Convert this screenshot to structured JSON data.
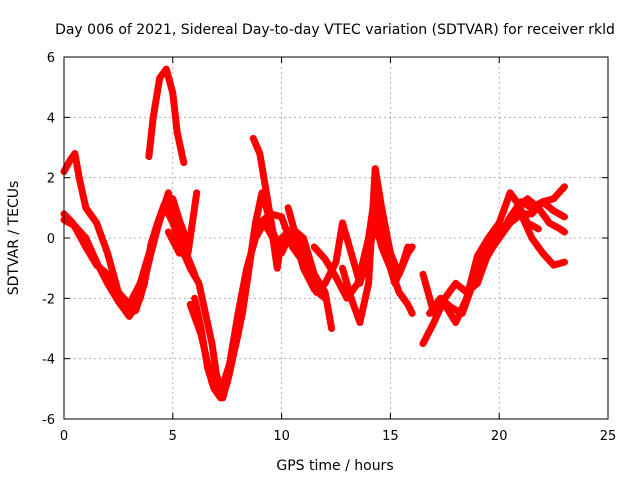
{
  "chart_data": {
    "type": "scatter",
    "title": "Day 006 of 2021, Sidereal Day-to-day VTEC variation (SDTVAR) for receiver rkld",
    "xlabel": "GPS time / hours",
    "ylabel": "SDTVAR / TECUs",
    "xlim": [
      0,
      25
    ],
    "ylim": [
      -6,
      6
    ],
    "xticks": [
      "0",
      "5",
      "10",
      "15",
      "20",
      "25"
    ],
    "yticks": [
      "-6",
      "-4",
      "-2",
      "0",
      "2",
      "4",
      "6"
    ],
    "grid": true,
    "marker": "+",
    "color": "#ff0000",
    "tracks": [
      {
        "points": [
          [
            0.0,
            2.2
          ],
          [
            0.3,
            2.6
          ],
          [
            0.5,
            2.8
          ],
          [
            0.7,
            2.0
          ],
          [
            1.0,
            1.0
          ],
          [
            1.5,
            0.5
          ],
          [
            2.0,
            -0.5
          ],
          [
            2.5,
            -1.8
          ],
          [
            3.0,
            -2.5
          ],
          [
            3.3,
            -2.4
          ],
          [
            3.7,
            -1.5
          ],
          [
            4.0,
            -0.2
          ],
          [
            4.3,
            0.5
          ],
          [
            4.6,
            1.1
          ],
          [
            5.0,
            0.5
          ],
          [
            5.5,
            -0.5
          ]
        ]
      },
      {
        "points": [
          [
            0.0,
            0.6
          ],
          [
            0.5,
            0.4
          ],
          [
            1.0,
            0.0
          ],
          [
            1.5,
            -0.8
          ],
          [
            2.0,
            -1.5
          ],
          [
            2.5,
            -2.1
          ],
          [
            3.0,
            -2.6
          ],
          [
            3.5,
            -2.0
          ],
          [
            4.0,
            -0.5
          ],
          [
            4.4,
            0.6
          ],
          [
            4.8,
            1.5
          ],
          [
            5.0,
            0.8
          ],
          [
            5.5,
            -0.3
          ],
          [
            6.0,
            -1.2
          ]
        ]
      },
      {
        "points": [
          [
            0.0,
            0.8
          ],
          [
            0.4,
            0.5
          ],
          [
            1.0,
            -0.3
          ],
          [
            1.5,
            -0.9
          ],
          [
            2.0,
            -1.2
          ],
          [
            2.5,
            -1.8
          ],
          [
            3.0,
            -2.2
          ],
          [
            3.5,
            -1.5
          ],
          [
            4.0,
            -0.3
          ],
          [
            4.5,
            0.8
          ],
          [
            5.0,
            1.3
          ],
          [
            5.3,
            0.6
          ],
          [
            5.7,
            -0.2
          ]
        ]
      },
      {
        "points": [
          [
            3.9,
            2.7
          ],
          [
            4.1,
            4.0
          ],
          [
            4.4,
            5.3
          ],
          [
            4.7,
            5.6
          ],
          [
            5.0,
            4.8
          ],
          [
            5.2,
            3.5
          ],
          [
            5.5,
            2.5
          ]
        ]
      },
      {
        "points": [
          [
            4.8,
            0.2
          ],
          [
            5.3,
            -0.5
          ],
          [
            5.7,
            -0.5
          ],
          [
            6.1,
            1.5
          ]
        ]
      },
      {
        "points": [
          [
            5.5,
            -0.5
          ],
          [
            5.8,
            -1.0
          ],
          [
            6.2,
            -1.5
          ],
          [
            6.5,
            -2.5
          ],
          [
            6.8,
            -3.5
          ],
          [
            7.0,
            -4.5
          ],
          [
            7.3,
            -5.3
          ],
          [
            7.6,
            -4.5
          ],
          [
            7.9,
            -3.5
          ],
          [
            8.2,
            -2.5
          ],
          [
            8.5,
            -1.0
          ],
          [
            8.8,
            0.5
          ],
          [
            9.1,
            1.5
          ],
          [
            9.5,
            0.5
          ],
          [
            9.8,
            -1.0
          ],
          [
            10.0,
            0.0
          ],
          [
            10.5,
            0.3
          ],
          [
            11.0,
            -1.0
          ],
          [
            11.5,
            -1.7
          ],
          [
            12.0,
            -2.0
          ]
        ]
      },
      {
        "points": [
          [
            6.0,
            -2.0
          ],
          [
            6.3,
            -3.0
          ],
          [
            6.6,
            -4.3
          ],
          [
            6.9,
            -5.0
          ],
          [
            7.2,
            -5.3
          ],
          [
            7.5,
            -4.8
          ],
          [
            7.8,
            -3.8
          ],
          [
            8.0,
            -3.2
          ],
          [
            8.3,
            -2.0
          ],
          [
            8.6,
            -0.5
          ],
          [
            9.0,
            0.5
          ],
          [
            9.5,
            0.8
          ],
          [
            10.0,
            0.7
          ],
          [
            10.5,
            -0.3
          ],
          [
            11.0,
            -0.8
          ],
          [
            11.5,
            -1.5
          ]
        ]
      },
      {
        "points": [
          [
            5.8,
            -2.2
          ],
          [
            6.3,
            -3.2
          ],
          [
            6.8,
            -4.8
          ],
          [
            7.2,
            -5.1
          ],
          [
            7.6,
            -4.2
          ],
          [
            8.0,
            -2.5
          ],
          [
            8.4,
            -1.0
          ],
          [
            8.8,
            0.0
          ],
          [
            9.2,
            0.5
          ],
          [
            9.6,
            0.0
          ]
        ]
      },
      {
        "points": [
          [
            8.7,
            3.3
          ],
          [
            9.0,
            2.8
          ],
          [
            9.3,
            1.5
          ],
          [
            9.6,
            0.2
          ],
          [
            10.0,
            -0.5
          ],
          [
            10.5,
            0.3
          ],
          [
            11.0,
            0.0
          ],
          [
            11.5,
            -1.2
          ],
          [
            12.0,
            -1.8
          ],
          [
            12.3,
            -3.0
          ]
        ]
      },
      {
        "points": [
          [
            10.3,
            1.0
          ],
          [
            10.8,
            -0.3
          ],
          [
            11.2,
            -1.0
          ],
          [
            11.6,
            -1.8
          ],
          [
            12.0,
            -1.5
          ],
          [
            12.5,
            -0.8
          ],
          [
            12.8,
            0.5
          ],
          [
            13.2,
            -0.5
          ],
          [
            13.6,
            -1.5
          ],
          [
            14.0,
            -0.5
          ],
          [
            14.3,
            0.5
          ],
          [
            14.6,
            -0.3
          ],
          [
            15.0,
            -1.0
          ],
          [
            15.4,
            -1.8
          ],
          [
            15.8,
            -2.2
          ],
          [
            16.0,
            -2.5
          ]
        ]
      },
      {
        "points": [
          [
            11.5,
            -0.3
          ],
          [
            12.0,
            -0.7
          ],
          [
            12.5,
            -1.3
          ],
          [
            13.0,
            -2.0
          ],
          [
            13.5,
            -1.5
          ],
          [
            14.0,
            0.0
          ],
          [
            14.3,
            1.5
          ],
          [
            14.5,
            0.5
          ],
          [
            14.8,
            -0.5
          ],
          [
            15.2,
            -1.5
          ],
          [
            15.5,
            -1.0
          ],
          [
            15.8,
            -0.3
          ]
        ]
      },
      {
        "points": [
          [
            12.8,
            -1.0
          ],
          [
            13.2,
            -2.0
          ],
          [
            13.6,
            -2.8
          ],
          [
            14.0,
            -1.5
          ],
          [
            14.3,
            2.3
          ],
          [
            14.6,
            1.0
          ],
          [
            15.0,
            -0.5
          ],
          [
            15.4,
            -1.2
          ],
          [
            15.8,
            -0.5
          ],
          [
            16.0,
            -0.3
          ]
        ]
      },
      {
        "points": [
          [
            16.5,
            -1.2
          ],
          [
            17.0,
            -2.5
          ],
          [
            17.5,
            -2.2
          ],
          [
            18.0,
            -2.8
          ],
          [
            18.5,
            -2.0
          ],
          [
            19.0,
            -1.0
          ],
          [
            19.5,
            -0.2
          ],
          [
            20.0,
            0.3
          ],
          [
            20.5,
            0.5
          ],
          [
            21.0,
            0.8
          ],
          [
            21.5,
            0.8
          ],
          [
            22.0,
            1.2
          ],
          [
            22.5,
            1.3
          ],
          [
            23.0,
            1.7
          ]
        ]
      },
      {
        "points": [
          [
            16.5,
            -3.5
          ],
          [
            17.0,
            -2.8
          ],
          [
            17.5,
            -2.0
          ],
          [
            18.0,
            -1.5
          ],
          [
            18.5,
            -1.8
          ],
          [
            19.0,
            -1.5
          ],
          [
            19.5,
            -0.5
          ],
          [
            20.0,
            0.0
          ],
          [
            20.5,
            0.5
          ],
          [
            21.0,
            0.8
          ],
          [
            21.5,
            0.0
          ],
          [
            22.0,
            -0.5
          ],
          [
            22.5,
            -0.9
          ],
          [
            23.0,
            -0.8
          ]
        ]
      },
      {
        "points": [
          [
            16.8,
            -2.5
          ],
          [
            17.3,
            -2.0
          ],
          [
            17.8,
            -2.3
          ],
          [
            18.3,
            -2.5
          ],
          [
            18.8,
            -1.5
          ],
          [
            19.3,
            -0.8
          ],
          [
            19.8,
            -0.2
          ],
          [
            20.3,
            0.4
          ],
          [
            20.8,
            1.0
          ],
          [
            21.3,
            1.3
          ],
          [
            21.8,
            1.0
          ],
          [
            22.3,
            0.5
          ],
          [
            22.8,
            0.3
          ],
          [
            23.0,
            0.2
          ]
        ]
      },
      {
        "points": [
          [
            19.5,
            -0.5
          ],
          [
            20.0,
            0.0
          ],
          [
            20.5,
            0.7
          ],
          [
            21.0,
            1.2
          ],
          [
            21.5,
            1.0
          ],
          [
            22.0,
            1.2
          ],
          [
            22.5,
            0.9
          ],
          [
            23.0,
            0.7
          ]
        ]
      },
      {
        "points": [
          [
            18.5,
            -2.0
          ],
          [
            19.0,
            -0.6
          ],
          [
            19.5,
            0.0
          ],
          [
            20.0,
            0.5
          ],
          [
            20.5,
            1.5
          ],
          [
            20.8,
            1.2
          ],
          [
            21.3,
            0.5
          ],
          [
            21.8,
            0.3
          ]
        ]
      }
    ]
  }
}
